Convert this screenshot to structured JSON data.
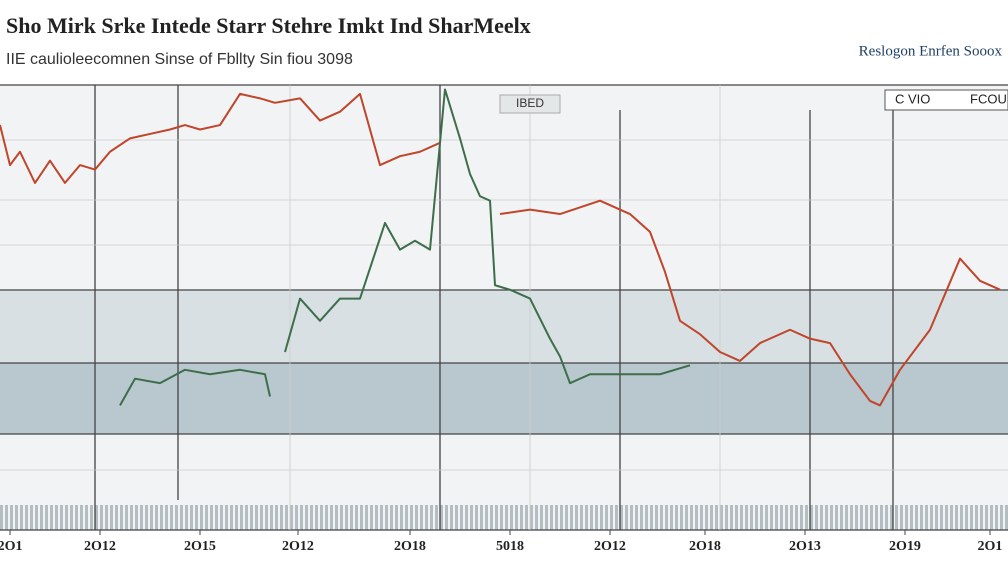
{
  "chart_data": {
    "type": "line",
    "title": "Sho Mirk Srke Intede Starr Stehre Imkt Ind SharMeelx",
    "subtitle": "IIE caulioleecomnen Sinse of Fbllty Sin fiou 3098",
    "side_label": "Reslogon Enrfen Sooox",
    "legend_box": "IBED",
    "legend_right": [
      "C VIO",
      "FCOU"
    ],
    "xlim": [
      0,
      1008
    ],
    "ylim": [
      0,
      100
    ],
    "xticks": [
      {
        "value": 10,
        "label": "2O1"
      },
      {
        "value": 100,
        "label": "2O12"
      },
      {
        "value": 200,
        "label": "2O15"
      },
      {
        "value": 298,
        "label": "2O12"
      },
      {
        "value": 410,
        "label": "2O18"
      },
      {
        "value": 510,
        "label": "5018"
      },
      {
        "value": 610,
        "label": "2O12"
      },
      {
        "value": 705,
        "label": "2O18"
      },
      {
        "value": 805,
        "label": "2O13"
      },
      {
        "value": 905,
        "label": "2O19"
      },
      {
        "value": 990,
        "label": "2O1"
      }
    ],
    "series": [
      {
        "color": "#c0452a",
        "x": [
          0,
          10,
          20,
          35,
          50,
          65,
          80,
          95,
          110,
          130,
          150,
          170,
          185,
          200,
          220,
          240,
          260,
          275,
          300,
          320,
          340,
          360,
          380,
          400,
          420,
          440,
          470,
          500,
          530,
          560,
          600,
          630,
          650,
          665,
          680,
          700,
          720,
          740,
          760,
          790,
          810,
          830,
          850,
          870,
          880,
          900,
          930,
          960,
          980,
          1000
        ],
        "values": [
          91,
          82,
          85,
          78,
          83,
          78,
          82,
          81,
          85,
          88,
          89,
          90,
          91,
          90,
          91,
          98,
          97,
          96,
          97,
          92,
          94,
          98,
          82,
          84,
          85,
          87,
          null,
          71,
          72,
          71,
          74,
          71,
          67,
          58,
          47,
          44,
          40,
          38,
          42,
          45,
          43,
          42,
          35,
          29,
          28,
          36,
          45,
          61,
          56,
          54
        ]
      },
      {
        "color": "#3d6e4a",
        "x": [
          120,
          135,
          160,
          185,
          210,
          240,
          265,
          270,
          278,
          285,
          300,
          320,
          340,
          360,
          385,
          400,
          415,
          430,
          445,
          460,
          470,
          480,
          490,
          495,
          510,
          530,
          550,
          560,
          570,
          590,
          620,
          660,
          690
        ],
        "values": [
          28,
          34,
          33,
          36,
          35,
          36,
          35,
          30,
          null,
          40,
          52,
          47,
          52,
          52,
          69,
          63,
          65,
          63,
          99,
          88,
          80,
          75,
          74,
          55,
          54,
          52,
          43,
          39,
          33,
          35,
          35,
          35,
          37
        ]
      }
    ]
  }
}
